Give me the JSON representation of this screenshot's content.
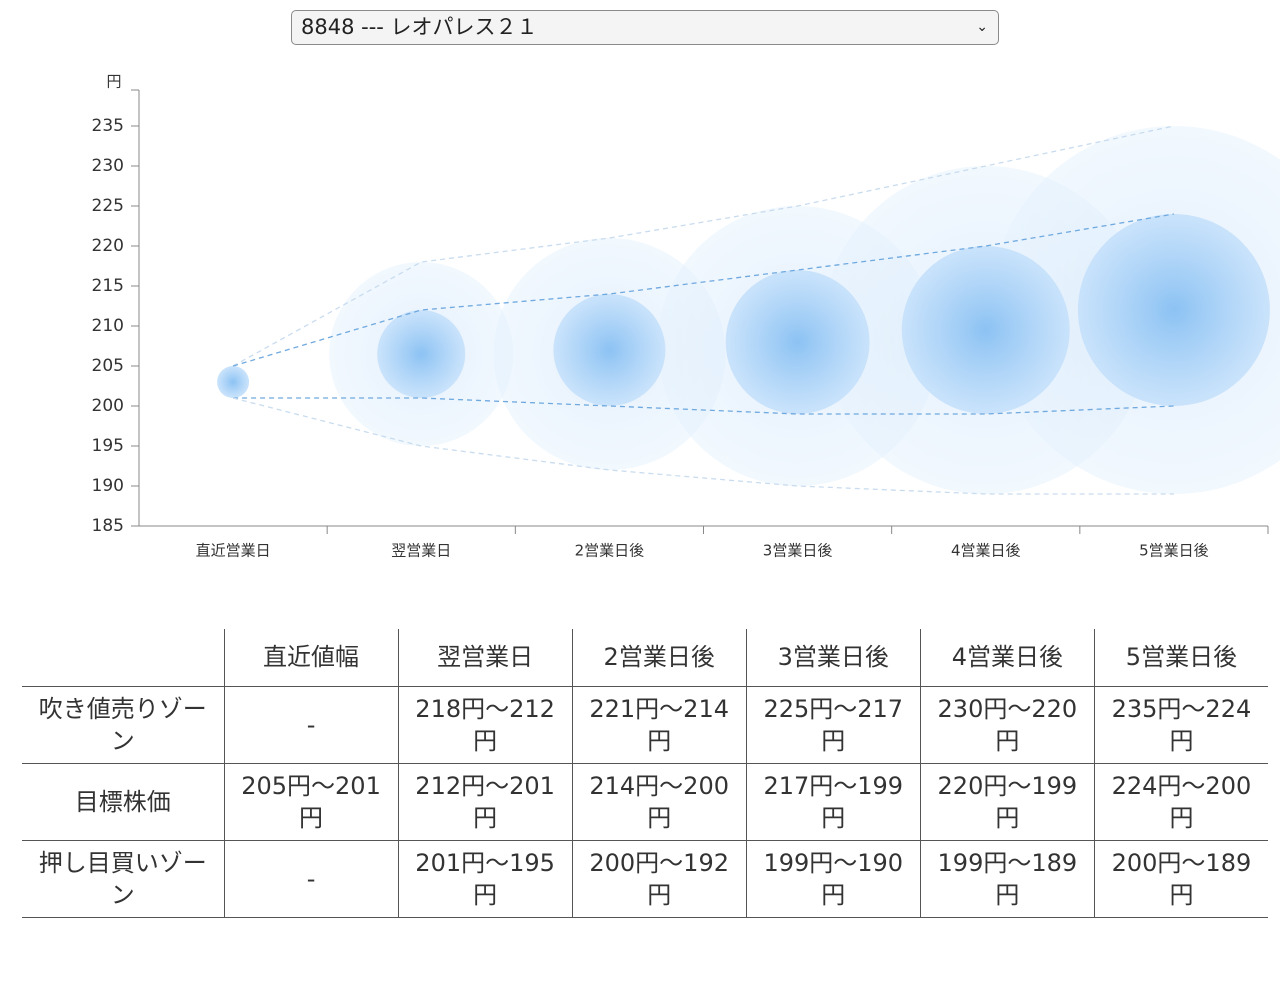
{
  "selector": {
    "value": "8848 --- レオパレス２１"
  },
  "chart_data": {
    "type": "bubble-band",
    "y_unit": "円",
    "categories": [
      "直近営業日",
      "翌営業日",
      "2営業日後",
      "3営業日後",
      "4営業日後",
      "5営業日後"
    ],
    "series": [
      {
        "color": "#c9dcef",
        "values": [
          205,
          218,
          221,
          225,
          230,
          235
        ]
      },
      {
        "color": "#6fa9df",
        "values": [
          205,
          212,
          214,
          217,
          220,
          224
        ]
      },
      {
        "color": "#6fa9df",
        "values": [
          201,
          201,
          200,
          199,
          199,
          200
        ]
      },
      {
        "color": "#c9dcef",
        "values": [
          201,
          195,
          192,
          190,
          189,
          189
        ]
      }
    ],
    "ylim": [
      185,
      240
    ],
    "yticks": [
      185,
      190,
      195,
      200,
      205,
      210,
      215,
      220,
      225,
      230,
      235
    ]
  },
  "table": {
    "columns": [
      "直近値幅",
      "翌営業日",
      "2営業日後",
      "3営業日後",
      "4営業日後",
      "5営業日後"
    ],
    "rows": [
      {
        "label": "吹き値売りゾーン",
        "cells": [
          "-",
          "218円〜212円",
          "221円〜214円",
          "225円〜217円",
          "230円〜220円",
          "235円〜224円"
        ]
      },
      {
        "label": "目標株価",
        "cells": [
          "205円〜201円",
          "212円〜201円",
          "214円〜200円",
          "217円〜199円",
          "220円〜199円",
          "224円〜200円"
        ]
      },
      {
        "label": "押し目買いゾーン",
        "cells": [
          "-",
          "201円〜195円",
          "200円〜192円",
          "199円〜190円",
          "199円〜189円",
          "200円〜189円"
        ]
      }
    ]
  }
}
